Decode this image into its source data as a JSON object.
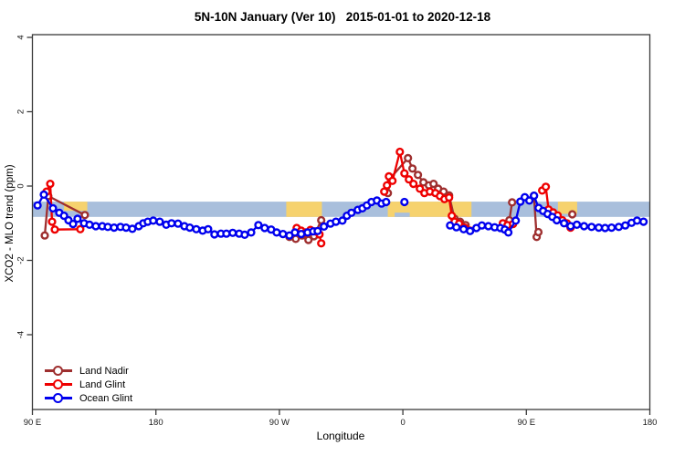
{
  "chart_data": {
    "type": "line",
    "title": "5N-10N January (Ver 10)   2015-01-01 to 2020-12-18",
    "xlabel": "Longitude",
    "ylabel": "XCO2 - MLO trend (ppm)",
    "grid": false,
    "legend_position": "bottom-left",
    "x_axis": {
      "span_deg": 450,
      "ticks": [
        {
          "t": 0,
          "label": "90 E"
        },
        {
          "t": 90,
          "label": "180"
        },
        {
          "t": 180,
          "label": "90 W"
        },
        {
          "t": 270,
          "label": "0"
        },
        {
          "t": 360,
          "label": "90 E"
        },
        {
          "t": 450,
          "label": "180"
        }
      ]
    },
    "y_axis": {
      "lim": [
        -6.1,
        4.1
      ],
      "ticks": [
        {
          "v": 4,
          "label": "4"
        },
        {
          "v": 2,
          "label": "2"
        },
        {
          "v": 0,
          "label": "0"
        },
        {
          "v": -2,
          "label": "-2"
        },
        {
          "v": -4,
          "label": "-4"
        }
      ]
    },
    "map_band": {
      "ocean_color": "#A9BFDC",
      "land_color": "#F6D26E",
      "v_top": -0.42,
      "v_bottom": -0.83,
      "land_patches": [
        {
          "t0": 23,
          "t1": 40,
          "frac_top": 0,
          "frac_bottom": 0.6
        },
        {
          "t0": 185,
          "t1": 211,
          "frac_top": 0,
          "frac_bottom": 1
        },
        {
          "t0": 259,
          "t1": 320,
          "frac_top": 0,
          "frac_bottom": 1
        },
        {
          "t0": 383,
          "t1": 397,
          "frac_top": 0,
          "frac_bottom": 0.8
        }
      ],
      "ocean_notches": [
        {
          "t0": 264,
          "t1": 275,
          "frac_top": 0.72,
          "frac_bottom": 1
        }
      ]
    },
    "series": [
      {
        "name": "Land Nadir",
        "color": "#9E2F2F",
        "segments": [
          [
            [
              9,
              -1.33
            ],
            [
              11.6,
              -0.27
            ],
            [
              38.2,
              -0.78
            ]
          ],
          [
            [
              187.3,
              -1.37
            ],
            [
              191.9,
              -1.42
            ],
            [
              196.6,
              -1.33
            ],
            [
              201.2,
              -1.45
            ],
            [
              205.2,
              -1.35
            ],
            [
              210.5,
              -0.92
            ]
          ],
          [
            [
              259.1,
              -0.19
            ],
            [
              261.1,
              0.22
            ],
            [
              273.7,
              0.75
            ],
            [
              277,
              0.47
            ],
            [
              281,
              0.3
            ],
            [
              285,
              0.1
            ],
            [
              289,
              0.02
            ],
            [
              292.4,
              0.06
            ],
            [
              295.7,
              -0.07
            ],
            [
              299.7,
              -0.15
            ],
            [
              303.7,
              -0.25
            ],
            [
              307.7,
              -0.88
            ],
            [
              311.7,
              -0.96
            ],
            [
              315.7,
              -1.05
            ]
          ],
          [
            [
              347.6,
              -0.92
            ],
            [
              349.6,
              -0.44
            ]
          ],
          [
            [
              365.5,
              -0.26
            ],
            [
              367.5,
              -1.37
            ],
            [
              368.8,
              -1.24
            ]
          ],
          [
            [
              393.5,
              -0.76
            ]
          ]
        ]
      },
      {
        "name": "Land Glint",
        "color": "#EE0000",
        "segments": [
          [
            [
              10.3,
              -0.15
            ],
            [
              13,
              0.06
            ],
            [
              14.3,
              -0.96
            ],
            [
              16.3,
              -1.17
            ],
            [
              34.9,
              -1.16
            ]
          ],
          [
            [
              192.6,
              -1.13
            ],
            [
              195.9,
              -1.2
            ],
            [
              199.2,
              -1.25
            ],
            [
              202.6,
              -1.18
            ],
            [
              205.9,
              -1.22
            ],
            [
              209.2,
              -1.3
            ],
            [
              210.5,
              -1.54
            ]
          ],
          [
            [
              256.4,
              -0.15
            ],
            [
              258.4,
              0.02
            ],
            [
              259.8,
              0.26
            ],
            [
              262.4,
              0.14
            ],
            [
              267.8,
              0.92
            ],
            [
              271.1,
              0.34
            ],
            [
              274.4,
              0.18
            ],
            [
              277.7,
              0.06
            ],
            [
              282.4,
              -0.07
            ],
            [
              285.7,
              -0.19
            ],
            [
              289.7,
              -0.15
            ],
            [
              293.7,
              -0.19
            ],
            [
              297,
              -0.27
            ],
            [
              300.3,
              -0.35
            ],
            [
              303.7,
              -0.31
            ],
            [
              305.7,
              -0.8
            ],
            [
              307.7,
              -0.96
            ],
            [
              311,
              -1.01
            ],
            [
              315,
              -1.12
            ],
            [
              319,
              -1.2
            ]
          ],
          [
            [
              342.9,
              -1
            ],
            [
              346.3,
              -1.05
            ],
            [
              350.3,
              -1.02
            ]
          ],
          [
            [
              371.5,
              -0.12
            ],
            [
              374.2,
              -0.02
            ],
            [
              376.2,
              -0.63
            ],
            [
              379.5,
              -0.71
            ],
            [
              382.8,
              -0.79
            ],
            [
              386.2,
              -0.92
            ],
            [
              389.5,
              -1
            ],
            [
              392.2,
              -1.12
            ]
          ]
        ]
      },
      {
        "name": "Ocean Glint",
        "color": "#0000EE",
        "segments": [
          [
            [
              3.7,
              -0.52
            ],
            [
              8.3,
              -0.23
            ],
            [
              15,
              -0.6
            ],
            [
              19.6,
              -0.72
            ],
            [
              23,
              -0.8
            ],
            [
              26.3,
              -0.92
            ],
            [
              29.6,
              -1.02
            ],
            [
              32.9,
              -0.88
            ],
            [
              37.6,
              -1
            ],
            [
              41.6,
              -1.04
            ],
            [
              46.2,
              -1.08
            ],
            [
              50.9,
              -1.08
            ],
            [
              54.9,
              -1.1
            ],
            [
              59.5,
              -1.12
            ],
            [
              64.2,
              -1.1
            ],
            [
              68.2,
              -1.12
            ],
            [
              72.8,
              -1.15
            ],
            [
              77.5,
              -1.08
            ],
            [
              80.8,
              -1
            ],
            [
              84.1,
              -0.96
            ],
            [
              88.1,
              -0.93
            ],
            [
              92.8,
              -0.96
            ],
            [
              97.5,
              -1.04
            ],
            [
              101.4,
              -1
            ],
            [
              106.1,
              -1.01
            ],
            [
              110.8,
              -1.08
            ],
            [
              114.7,
              -1.12
            ],
            [
              119.4,
              -1.16
            ],
            [
              124.1,
              -1.2
            ],
            [
              128.1,
              -1.16
            ],
            [
              132.7,
              -1.3
            ],
            [
              137.4,
              -1.28
            ],
            [
              141.4,
              -1.28
            ],
            [
              146,
              -1.26
            ],
            [
              150.7,
              -1.28
            ],
            [
              154.7,
              -1.31
            ],
            [
              159.4,
              -1.25
            ],
            [
              164.7,
              -1.05
            ],
            [
              169.3,
              -1.13
            ],
            [
              174,
              -1.17
            ],
            [
              178,
              -1.25
            ],
            [
              182.6,
              -1.29
            ],
            [
              187.3,
              -1.33
            ],
            [
              191.3,
              -1.25
            ],
            [
              195.9,
              -1.29
            ],
            [
              200.6,
              -1.25
            ],
            [
              204.6,
              -1.22
            ],
            [
              207.9,
              -1.21
            ],
            [
              212.5,
              -1.09
            ],
            [
              217.2,
              -1.01
            ],
            [
              221.2,
              -0.96
            ],
            [
              225.9,
              -0.93
            ],
            [
              229.2,
              -0.8
            ],
            [
              232.5,
              -0.72
            ],
            [
              237.2,
              -0.64
            ],
            [
              240.5,
              -0.6
            ],
            [
              243.8,
              -0.52
            ],
            [
              247.1,
              -0.43
            ],
            [
              251.1,
              -0.39
            ],
            [
              254.5,
              -0.47
            ],
            [
              257.8,
              -0.43
            ]
          ],
          [
            [
              271.1,
              -0.43
            ]
          ],
          [
            [
              304.4,
              -1.06
            ],
            [
              309,
              -1.11
            ],
            [
              314.3,
              -1.16
            ],
            [
              319,
              -1.21
            ],
            [
              323.6,
              -1.13
            ],
            [
              327.6,
              -1.06
            ],
            [
              332.3,
              -1.08
            ],
            [
              336.9,
              -1.11
            ],
            [
              341,
              -1.13
            ],
            [
              344.3,
              -1.17
            ],
            [
              346.9,
              -1.25
            ],
            [
              352.3,
              -0.93
            ],
            [
              355.6,
              -0.42
            ],
            [
              358.9,
              -0.3
            ],
            [
              362.2,
              -0.39
            ],
            [
              365.6,
              -0.26
            ],
            [
              368.9,
              -0.59
            ],
            [
              372.2,
              -0.67
            ],
            [
              375.5,
              -0.75
            ],
            [
              378.9,
              -0.83
            ],
            [
              382.2,
              -0.92
            ],
            [
              387.5,
              -1
            ],
            [
              392.2,
              -1.08
            ],
            [
              396.8,
              -1.04
            ],
            [
              402.1,
              -1.08
            ],
            [
              407.5,
              -1.1
            ],
            [
              412.8,
              -1.12
            ],
            [
              417.4,
              -1.13
            ],
            [
              422.1,
              -1.12
            ],
            [
              427.4,
              -1.1
            ],
            [
              432.1,
              -1.06
            ],
            [
              436.7,
              -0.99
            ],
            [
              440.7,
              -0.93
            ],
            [
              445.4,
              -0.96
            ]
          ]
        ]
      }
    ]
  }
}
